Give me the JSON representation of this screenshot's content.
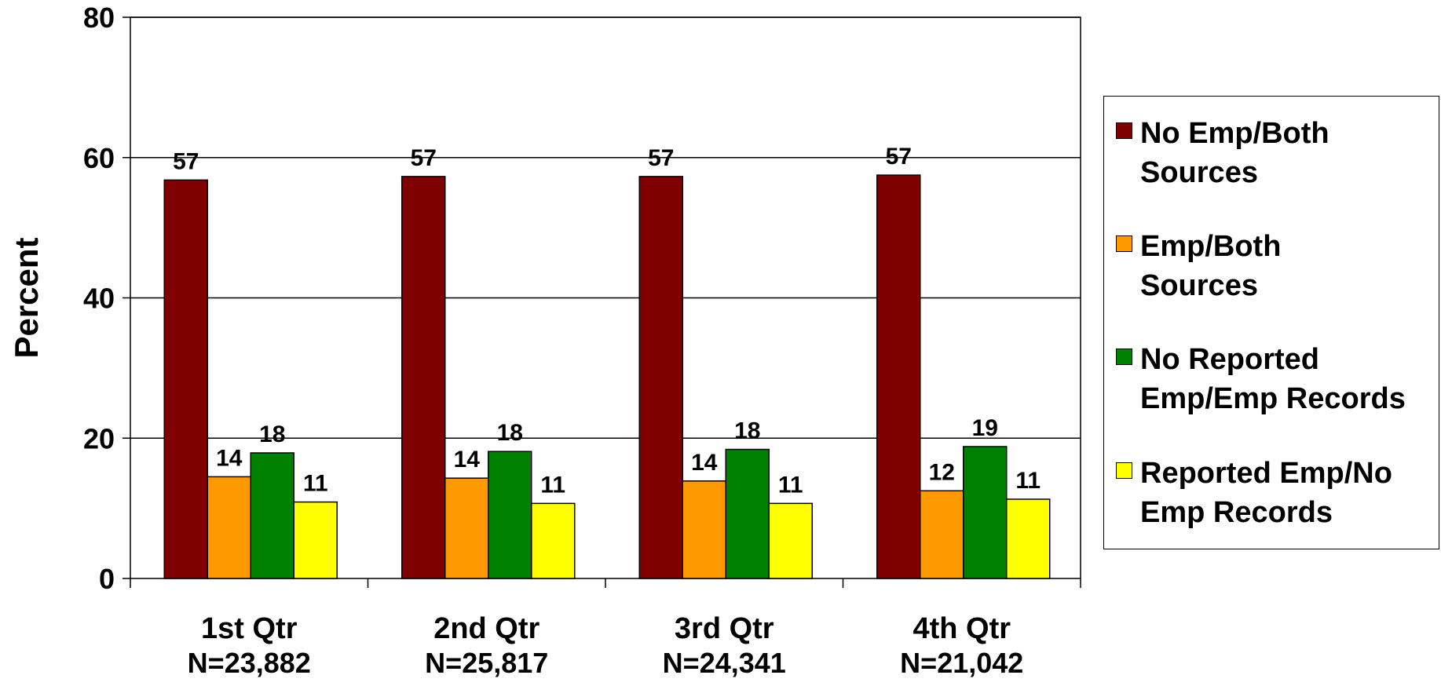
{
  "chart_data": {
    "type": "bar",
    "ylabel": "Percent",
    "ylim": [
      0,
      80
    ],
    "yticks": [
      0,
      20,
      40,
      60,
      80
    ],
    "grid": true,
    "legend_position": "right",
    "categories": [
      {
        "label": "1st Qtr",
        "n": "N=23,882"
      },
      {
        "label": "2nd Qtr",
        "n": "N=25,817"
      },
      {
        "label": "3rd Qtr",
        "n": "N=24,341"
      },
      {
        "label": "4th Qtr",
        "n": "N=21,042"
      }
    ],
    "series": [
      {
        "name": "No Emp/Both\nSources",
        "color": "#800000",
        "values": [
          56.8,
          57.3,
          57.3,
          57.5
        ],
        "labels": [
          "57",
          "57",
          "57",
          "57"
        ]
      },
      {
        "name": "Emp/Both\nSources",
        "color": "#FF9900",
        "values": [
          14.5,
          14.3,
          13.9,
          12.5
        ],
        "labels": [
          "14",
          "14",
          "14",
          "12"
        ]
      },
      {
        "name": "No Reported\nEmp/Emp Records",
        "color": "#008000",
        "values": [
          17.9,
          18.1,
          18.4,
          18.8
        ],
        "labels": [
          "18",
          "18",
          "18",
          "19"
        ]
      },
      {
        "name": "Reported Emp/No\nEmp Records",
        "color": "#FFFF00",
        "values": [
          10.9,
          10.7,
          10.7,
          11.3
        ],
        "labels": [
          "11",
          "11",
          "11",
          "11"
        ]
      }
    ]
  }
}
